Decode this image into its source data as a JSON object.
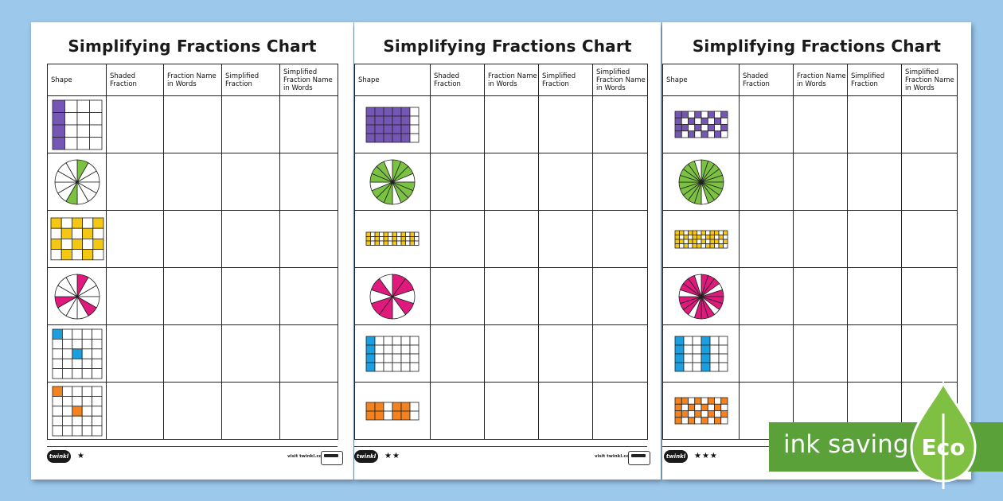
{
  "title": "Simplifying Fractions Chart",
  "columns": [
    "Shape",
    "Shaded Fraction",
    "Fraction Name in Words",
    "Simplified Fraction",
    "Simplified Fraction Name in Words"
  ],
  "colors": {
    "purple": "#7656b4",
    "green": "#7cc242",
    "yellow": "#f4c712",
    "pink": "#e0197d",
    "blue": "#1aa0e0",
    "orange": "#f4821f",
    "eco_green": "#5aa13a"
  },
  "sheets": [
    {
      "stars": "★",
      "shapes": [
        {
          "type": "grid",
          "color": "purple",
          "rows": 4,
          "cols": 4,
          "shaded": 4
        },
        {
          "type": "circle",
          "color": "green",
          "slices": 12,
          "shaded": 2
        },
        {
          "type": "grid",
          "color": "yellow",
          "rows": 4,
          "cols": 5,
          "shaded": 10
        },
        {
          "type": "circle",
          "color": "pink",
          "slices": 12,
          "shaded": 3
        },
        {
          "type": "grid",
          "color": "blue",
          "rows": 5,
          "cols": 5,
          "shaded": 2
        },
        {
          "type": "grid",
          "color": "orange",
          "rows": 5,
          "cols": 5,
          "shaded": 2
        }
      ]
    },
    {
      "stars": "★★",
      "shapes": [
        {
          "type": "grid",
          "color": "purple",
          "rows": 4,
          "cols": 6,
          "shaded": 20
        },
        {
          "type": "circle",
          "color": "green",
          "slices": 16,
          "shaded": 12
        },
        {
          "type": "grid",
          "color": "yellow",
          "rows": 3,
          "cols": 12,
          "shaded": 18
        },
        {
          "type": "circle",
          "color": "pink",
          "slices": 10,
          "shaded": 6
        },
        {
          "type": "grid",
          "color": "blue",
          "rows": 4,
          "cols": 6,
          "shaded": 4
        },
        {
          "type": "grid",
          "color": "orange",
          "rows": 2,
          "cols": 6,
          "shaded": 8
        }
      ]
    },
    {
      "stars": "★★★",
      "shapes": [
        {
          "type": "grid",
          "color": "purple",
          "rows": 4,
          "cols": 8,
          "shaded": 18
        },
        {
          "type": "circle",
          "color": "green",
          "slices": 20,
          "shaded": 18
        },
        {
          "type": "grid",
          "color": "yellow",
          "rows": 4,
          "cols": 12,
          "shaded": 30
        },
        {
          "type": "circle",
          "color": "pink",
          "slices": 20,
          "shaded": 15
        },
        {
          "type": "grid",
          "color": "blue",
          "rows": 4,
          "cols": 6,
          "shaded": 8
        },
        {
          "type": "grid",
          "color": "orange",
          "rows": 4,
          "cols": 8,
          "shaded": 18
        }
      ]
    }
  ],
  "footer": {
    "logo_text": "twinkl",
    "visit_text": "visit twinkl.com"
  },
  "eco": {
    "text": "ink saving",
    "label": "Eco"
  }
}
